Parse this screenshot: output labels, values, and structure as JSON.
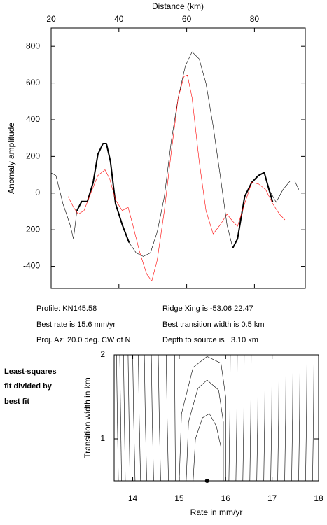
{
  "chart_data": [
    {
      "type": "line",
      "xlabel": "Distance (km)",
      "ylabel": "Anomaly amplitude",
      "xaxis_position": "top",
      "xlim": [
        20,
        95
      ],
      "ylim": [
        -520,
        900
      ],
      "xticks": [
        20,
        40,
        60,
        80
      ],
      "yticks": [
        -400,
        -200,
        0,
        200,
        400,
        600,
        800
      ],
      "series": [
        {
          "color": "#000000",
          "width": 0.6,
          "x": [
            20,
            21.4,
            23.5,
            25.6,
            26.6,
            27.6,
            29,
            30.7,
            32.4,
            33.8,
            35.3,
            36.3,
            37.5,
            39,
            41,
            43,
            45.1,
            47.2,
            49.3,
            51.3,
            53.4,
            55.5,
            57.5,
            59.6,
            61.6,
            63.7,
            65.7,
            67.8,
            69.9,
            71.9,
            73.6,
            75,
            77.1,
            79.2,
            81.2,
            82.9,
            84.3,
            86.4,
            88.4,
            90.5,
            91.9,
            93.1
          ],
          "values": [
            110,
            96,
            -58,
            -173,
            -250,
            -96,
            -46,
            -46,
            58,
            212,
            270,
            270,
            173,
            -58,
            -173,
            -270,
            -327,
            -346,
            -327,
            -212,
            -19,
            289,
            520,
            693,
            770,
            731,
            597,
            366,
            96,
            -173,
            -300,
            -250,
            -19,
            58,
            96,
            112,
            19,
            -50,
            19,
            65,
            65,
            19
          ]
        },
        {
          "color": "#000000",
          "width": 2,
          "x": [
            27.6,
            29,
            30.7,
            32.4,
            33.8,
            35.3,
            36.3,
            37.5,
            39,
            41,
            43
          ],
          "values": [
            -96,
            -46,
            -46,
            58,
            212,
            270,
            270,
            173,
            -58,
            -173,
            -270
          ]
        },
        {
          "color": "#000000",
          "width": 2,
          "x": [
            73.6,
            75,
            77.1,
            79.2,
            81.2,
            82.9,
            84.3,
            85.4
          ],
          "values": [
            -300,
            -250,
            -19,
            58,
            96,
            112,
            19,
            -50
          ]
        },
        {
          "color": "#ff0000",
          "width": 0.6,
          "x": [
            25,
            26.6,
            28,
            29.7,
            31.7,
            33.8,
            35.9,
            37.3,
            39,
            41,
            42.7,
            44.1,
            46.2,
            48.2,
            49.7,
            51.3,
            53.4,
            55.5,
            57.5,
            59.2,
            60.2,
            61.6,
            63.7,
            65.7,
            67.8,
            69.9,
            71.9,
            73.6,
            75,
            77.1,
            79.2,
            81.2,
            83.3,
            85.4,
            87.4,
            89
          ],
          "values": [
            -19,
            -77,
            -115,
            -96,
            0,
            96,
            127,
            77,
            -38,
            -96,
            -77,
            -173,
            -327,
            -442,
            -480,
            -366,
            -96,
            231,
            520,
            635,
            643,
            520,
            173,
            -96,
            -223,
            -173,
            -115,
            -154,
            -181,
            -58,
            58,
            50,
            19,
            -58,
            -115,
            -146
          ]
        }
      ]
    },
    {
      "type": "contour",
      "xlabel": "Rate in mm/yr",
      "ylabel": "Transition width in km",
      "xlim": [
        13.6,
        18
      ],
      "ylim": [
        0.5,
        2
      ],
      "xticks": [
        14,
        15,
        16,
        17,
        18
      ],
      "yticks": [
        1,
        2
      ],
      "color": "#000000",
      "lines": [
        {
          "x": [
            13.65,
            13.67,
            13.69
          ],
          "y": [
            2,
            1.25,
            0.5
          ]
        },
        {
          "x": [
            13.72,
            13.74,
            13.76
          ],
          "y": [
            2,
            1.25,
            0.5
          ]
        },
        {
          "x": [
            13.8,
            13.82,
            13.84
          ],
          "y": [
            2,
            1.25,
            0.5
          ]
        },
        {
          "x": [
            13.9,
            13.92,
            13.94
          ],
          "y": [
            2,
            1.25,
            0.5
          ]
        },
        {
          "x": [
            14,
            14.02,
            14.05
          ],
          "y": [
            2,
            1.25,
            0.5
          ]
        },
        {
          "x": [
            14.12,
            14.14,
            14.17
          ],
          "y": [
            2,
            1.25,
            0.5
          ]
        },
        {
          "x": [
            14.25,
            14.27,
            14.3
          ],
          "y": [
            2,
            1.25,
            0.5
          ]
        },
        {
          "x": [
            14.4,
            14.42,
            14.45
          ],
          "y": [
            2,
            1.25,
            0.5
          ]
        },
        {
          "x": [
            14.55,
            14.57,
            14.6
          ],
          "y": [
            2,
            1.25,
            0.5
          ]
        },
        {
          "x": [
            14.72,
            14.74,
            14.77
          ],
          "y": [
            2,
            1.25,
            0.5
          ]
        },
        {
          "x": [
            14.9,
            14.91,
            14.92
          ],
          "y": [
            2,
            1.25,
            0.5
          ]
        },
        {
          "x": [
            15.0,
            15.05,
            15.3,
            15.6,
            15.9,
            16.0,
            16.0
          ],
          "y": [
            0.5,
            1.3,
            1.85,
            1.98,
            1.9,
            1.5,
            0.5
          ]
        },
        {
          "x": [
            15.15,
            15.2,
            15.4,
            15.6,
            15.85,
            15.95,
            15.95
          ],
          "y": [
            0.5,
            1.2,
            1.6,
            1.7,
            1.58,
            1.2,
            0.5
          ]
        },
        {
          "x": [
            15.3,
            15.35,
            15.5,
            15.65,
            15.8,
            15.9,
            15.9
          ],
          "y": [
            0.5,
            1.0,
            1.25,
            1.3,
            1.15,
            0.9,
            0.5
          ]
        },
        {
          "x": [
            16.1,
            16.09,
            16.07
          ],
          "y": [
            2,
            1.25,
            0.5
          ]
        },
        {
          "x": [
            16.25,
            16.24,
            16.22
          ],
          "y": [
            2,
            1.25,
            0.5
          ]
        },
        {
          "x": [
            16.4,
            16.39,
            16.37
          ],
          "y": [
            2,
            1.25,
            0.5
          ]
        },
        {
          "x": [
            16.55,
            16.54,
            16.52
          ],
          "y": [
            2,
            1.25,
            0.5
          ]
        },
        {
          "x": [
            16.7,
            16.69,
            16.67
          ],
          "y": [
            2,
            1.25,
            0.5
          ]
        },
        {
          "x": [
            16.85,
            16.84,
            16.82
          ],
          "y": [
            2,
            1.25,
            0.5
          ]
        },
        {
          "x": [
            17.0,
            16.99,
            16.97
          ],
          "y": [
            2,
            1.25,
            0.5
          ]
        },
        {
          "x": [
            17.15,
            17.14,
            17.12
          ],
          "y": [
            2,
            1.25,
            0.5
          ]
        },
        {
          "x": [
            17.3,
            17.29,
            17.27
          ],
          "y": [
            2,
            1.25,
            0.5
          ]
        },
        {
          "x": [
            17.45,
            17.44,
            17.42
          ],
          "y": [
            2,
            1.25,
            0.5
          ]
        },
        {
          "x": [
            17.6,
            17.59,
            17.57
          ],
          "y": [
            2,
            1.25,
            0.5
          ]
        },
        {
          "x": [
            17.75,
            17.74,
            17.72
          ],
          "y": [
            2,
            1.25,
            0.5
          ]
        },
        {
          "x": [
            17.9,
            17.89,
            17.87
          ],
          "y": [
            2,
            1.25,
            0.5
          ]
        }
      ],
      "point": {
        "x": 15.6,
        "y": 0.5
      }
    }
  ],
  "info": {
    "profile": "Profile: KN145.58",
    "best_rate": "Best rate is 15.6 mm/yr",
    "proj_az": "Proj. Az: 20.0 deg. CW of N",
    "ridge_xing": "Ridge Xing is -53.06 22.47",
    "best_width": "Best transition width is 0.5 km",
    "depth": "Depth to source is   3.10 km"
  },
  "note": [
    "Least-squares",
    "fit divided by",
    "best fit"
  ]
}
